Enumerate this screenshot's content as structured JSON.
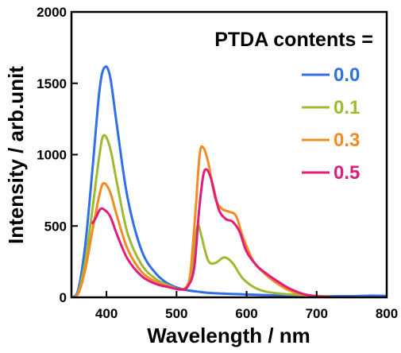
{
  "chart_data": {
    "type": "line",
    "title": "",
    "xlabel": "Wavelength / nm",
    "ylabel": "Intensity / arb.unit",
    "xlim": [
      350,
      800
    ],
    "ylim": [
      0,
      2000
    ],
    "xticks": [
      400,
      500,
      600,
      700,
      800
    ],
    "yticks": [
      0,
      500,
      1000,
      1500,
      2000
    ],
    "grid": false,
    "legend_title": "PTDA contents =",
    "legend_position": "top-right",
    "series": [
      {
        "name": "0.0",
        "color": "#2f6fe8",
        "points": [
          [
            352,
            0
          ],
          [
            360,
            60
          ],
          [
            370,
            380
          ],
          [
            380,
            900
          ],
          [
            390,
            1450
          ],
          [
            397,
            1610
          ],
          [
            405,
            1550
          ],
          [
            415,
            1200
          ],
          [
            430,
            700
          ],
          [
            450,
            330
          ],
          [
            470,
            170
          ],
          [
            490,
            90
          ],
          [
            510,
            55
          ],
          [
            530,
            40
          ],
          [
            550,
            30
          ],
          [
            600,
            20
          ],
          [
            650,
            12
          ],
          [
            700,
            8
          ],
          [
            750,
            8
          ],
          [
            780,
            12
          ],
          [
            800,
            10
          ]
        ]
      },
      {
        "name": "0.1",
        "color": "#9dbb32",
        "points": [
          [
            352,
            0
          ],
          [
            360,
            40
          ],
          [
            370,
            260
          ],
          [
            380,
            620
          ],
          [
            390,
            1000
          ],
          [
            396,
            1135
          ],
          [
            405,
            1050
          ],
          [
            415,
            800
          ],
          [
            430,
            450
          ],
          [
            450,
            230
          ],
          [
            470,
            130
          ],
          [
            490,
            80
          ],
          [
            505,
            55
          ],
          [
            515,
            80
          ],
          [
            522,
            200
          ],
          [
            528,
            450
          ],
          [
            531,
            505
          ],
          [
            535,
            440
          ],
          [
            545,
            260
          ],
          [
            555,
            240
          ],
          [
            568,
            280
          ],
          [
            580,
            240
          ],
          [
            595,
            130
          ],
          [
            615,
            60
          ],
          [
            640,
            30
          ],
          [
            680,
            15
          ],
          [
            700,
            10
          ],
          [
            720,
            5
          ]
        ]
      },
      {
        "name": "0.3",
        "color": "#f38b25",
        "points": [
          [
            352,
            0
          ],
          [
            360,
            30
          ],
          [
            370,
            200
          ],
          [
            380,
            470
          ],
          [
            390,
            720
          ],
          [
            396,
            800
          ],
          [
            405,
            740
          ],
          [
            415,
            570
          ],
          [
            430,
            340
          ],
          [
            450,
            180
          ],
          [
            470,
            110
          ],
          [
            490,
            75
          ],
          [
            505,
            55
          ],
          [
            515,
            80
          ],
          [
            520,
            180
          ],
          [
            527,
            600
          ],
          [
            533,
            1000
          ],
          [
            538,
            1050
          ],
          [
            545,
            950
          ],
          [
            555,
            700
          ],
          [
            565,
            620
          ],
          [
            575,
            600
          ],
          [
            585,
            570
          ],
          [
            595,
            420
          ],
          [
            610,
            250
          ],
          [
            625,
            170
          ],
          [
            640,
            110
          ],
          [
            660,
            50
          ],
          [
            680,
            20
          ],
          [
            700,
            8
          ],
          [
            720,
            3
          ]
        ]
      },
      {
        "name": "0.5",
        "color": "#e21d79",
        "points": [
          [
            380,
            520
          ],
          [
            385,
            560
          ],
          [
            390,
            610
          ],
          [
            395,
            620
          ],
          [
            405,
            570
          ],
          [
            415,
            440
          ],
          [
            430,
            270
          ],
          [
            450,
            150
          ],
          [
            470,
            95
          ],
          [
            490,
            70
          ],
          [
            505,
            55
          ],
          [
            515,
            70
          ],
          [
            525,
            200
          ],
          [
            532,
            600
          ],
          [
            538,
            850
          ],
          [
            543,
            895
          ],
          [
            550,
            820
          ],
          [
            560,
            620
          ],
          [
            570,
            550
          ],
          [
            580,
            530
          ],
          [
            590,
            460
          ],
          [
            600,
            320
          ],
          [
            615,
            220
          ],
          [
            630,
            160
          ],
          [
            645,
            110
          ],
          [
            660,
            65
          ],
          [
            680,
            25
          ],
          [
            700,
            8
          ],
          [
            720,
            3
          ]
        ]
      }
    ]
  }
}
